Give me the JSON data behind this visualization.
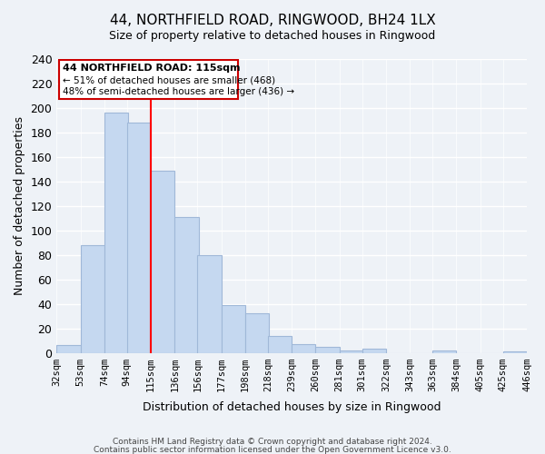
{
  "title": "44, NORTHFIELD ROAD, RINGWOOD, BH24 1LX",
  "subtitle": "Size of property relative to detached houses in Ringwood",
  "xlabel": "Distribution of detached houses by size in Ringwood",
  "ylabel": "Number of detached properties",
  "bins": [
    32,
    53,
    74,
    94,
    115,
    136,
    156,
    177,
    198,
    218,
    239,
    260,
    281,
    301,
    322,
    343,
    363,
    384,
    405,
    425,
    446
  ],
  "bin_labels": [
    "32sqm",
    "53sqm",
    "74sqm",
    "94sqm",
    "115sqm",
    "136sqm",
    "156sqm",
    "177sqm",
    "198sqm",
    "218sqm",
    "239sqm",
    "260sqm",
    "281sqm",
    "301sqm",
    "322sqm",
    "343sqm",
    "363sqm",
    "384sqm",
    "405sqm",
    "425sqm",
    "446sqm"
  ],
  "values": [
    6,
    88,
    196,
    188,
    149,
    111,
    80,
    39,
    32,
    14,
    7,
    5,
    2,
    3,
    0,
    0,
    2,
    0,
    0,
    1
  ],
  "bar_color": "#c5d8f0",
  "bar_edge_color": "#a0b8d8",
  "property_line_x": 115,
  "property_line_color": "red",
  "annotation_title": "44 NORTHFIELD ROAD: 115sqm",
  "annotation_line1": "← 51% of detached houses are smaller (468)",
  "annotation_line2": "48% of semi-detached houses are larger (436) →",
  "annotation_box_color": "white",
  "annotation_box_edge": "#cc0000",
  "ylim": [
    0,
    240
  ],
  "yticks": [
    0,
    20,
    40,
    60,
    80,
    100,
    120,
    140,
    160,
    180,
    200,
    220,
    240
  ],
  "footer_line1": "Contains HM Land Registry data © Crown copyright and database right 2024.",
  "footer_line2": "Contains public sector information licensed under the Open Government Licence v3.0.",
  "background_color": "#eef2f7"
}
